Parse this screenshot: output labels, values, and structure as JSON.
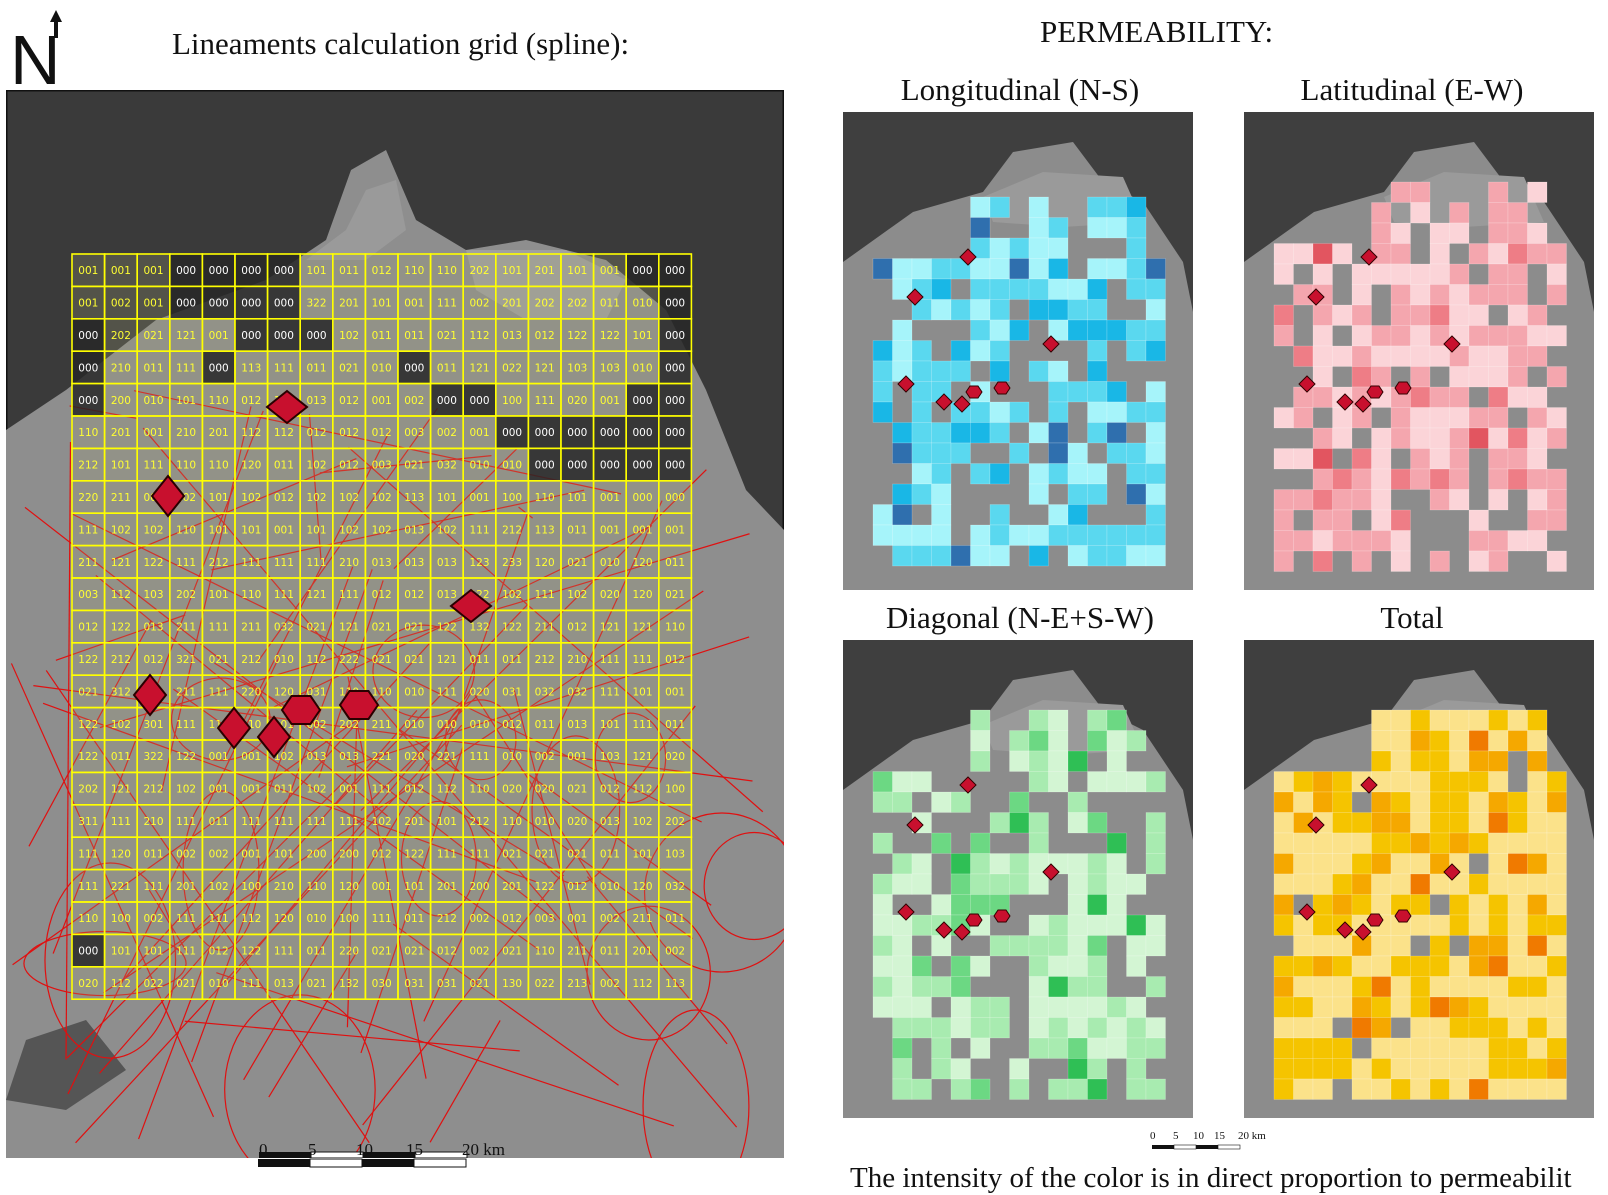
{
  "north_label": "N",
  "grid_title": "Lineaments calculation grid (spline):",
  "permeability_title": "PERMEABILITY:",
  "panels": {
    "longitudinal": {
      "title": "Longitudinal (N-S)",
      "color": "#5ad8ef"
    },
    "latitudinal": {
      "title": "Latitudinal (E-W)",
      "color": "#f4a6ae"
    },
    "diagonal": {
      "title": "Diagonal (N-E+S-W)",
      "color": "#a8ebb0"
    },
    "total": {
      "title": "Total",
      "color": "#f5c400"
    }
  },
  "scale_main": {
    "ticks": [
      "0",
      "5",
      "10",
      "15",
      "20 km"
    ]
  },
  "scale_small": {
    "ticks": [
      "0",
      "5",
      "10",
      "15",
      "20 km"
    ]
  },
  "caption": "The intensity of the color is in direct proportion to permeabilit",
  "colors": {
    "grid_line": "#ffff00",
    "grid_text": "#ffff33",
    "lineament": "#e01010",
    "marker": "#c8102e",
    "basemap": "#3c3c3c",
    "land": "#8a8a8a"
  },
  "grid": {
    "rows": [
      [
        "001",
        "001",
        "001",
        "000",
        "000",
        "000",
        "000",
        "101",
        "011",
        "012",
        "110",
        "110",
        "202",
        "101",
        "201",
        "101",
        "001",
        "000",
        "000"
      ],
      [
        "001",
        "002",
        "001",
        "000",
        "000",
        "000",
        "000",
        "322",
        "201",
        "101",
        "001",
        "111",
        "002",
        "201",
        "202",
        "202",
        "011",
        "010",
        "000"
      ],
      [
        "000",
        "202",
        "021",
        "121",
        "001",
        "000",
        "000",
        "000",
        "102",
        "011",
        "011",
        "021",
        "112",
        "013",
        "012",
        "122",
        "122",
        "101",
        "000"
      ],
      [
        "000",
        "210",
        "011",
        "111",
        "000",
        "113",
        "111",
        "011",
        "021",
        "010",
        "000",
        "011",
        "121",
        "022",
        "121",
        "103",
        "103",
        "010",
        "000"
      ],
      [
        "000",
        "200",
        "010",
        "101",
        "110",
        "012",
        "111",
        "013",
        "012",
        "001",
        "002",
        "000",
        "000",
        "100",
        "111",
        "020",
        "001",
        "000",
        "000"
      ],
      [
        "110",
        "201",
        "001",
        "210",
        "201",
        "112",
        "112",
        "012",
        "012",
        "012",
        "003",
        "002",
        "001",
        "000",
        "000",
        "000",
        "000",
        "000",
        "000"
      ],
      [
        "212",
        "101",
        "111",
        "110",
        "110",
        "120",
        "011",
        "102",
        "012",
        "003",
        "021",
        "032",
        "010",
        "010",
        "000",
        "000",
        "000",
        "000",
        "000"
      ],
      [
        "220",
        "211",
        "001",
        "102",
        "101",
        "102",
        "012",
        "102",
        "102",
        "102",
        "113",
        "101",
        "001",
        "100",
        "110",
        "101",
        "001",
        "000",
        "000"
      ],
      [
        "111",
        "102",
        "102",
        "110",
        "101",
        "101",
        "001",
        "101",
        "102",
        "102",
        "013",
        "102",
        "111",
        "212",
        "113",
        "011",
        "001",
        "001",
        "001"
      ],
      [
        "211",
        "121",
        "122",
        "111",
        "212",
        "111",
        "111",
        "111",
        "210",
        "013",
        "013",
        "013",
        "123",
        "233",
        "120",
        "021",
        "010",
        "120",
        "011"
      ],
      [
        "003",
        "112",
        "103",
        "202",
        "101",
        "110",
        "111",
        "121",
        "111",
        "012",
        "012",
        "013",
        "122",
        "102",
        "111",
        "102",
        "020",
        "120",
        "021"
      ],
      [
        "012",
        "122",
        "013",
        "211",
        "111",
        "211",
        "032",
        "021",
        "121",
        "021",
        "021",
        "122",
        "132",
        "122",
        "211",
        "012",
        "121",
        "121",
        "110"
      ],
      [
        "122",
        "212",
        "012",
        "321",
        "021",
        "212",
        "010",
        "112",
        "222",
        "021",
        "021",
        "121",
        "011",
        "011",
        "212",
        "210",
        "111",
        "111",
        "012"
      ],
      [
        "021",
        "312",
        "111",
        "211",
        "111",
        "220",
        "120",
        "031",
        "110",
        "110",
        "010",
        "111",
        "020",
        "031",
        "032",
        "032",
        "111",
        "101",
        "001"
      ],
      [
        "122",
        "102",
        "301",
        "111",
        "110",
        "110",
        "101",
        "002",
        "202",
        "211",
        "010",
        "010",
        "010",
        "012",
        "011",
        "013",
        "101",
        "111",
        "011"
      ],
      [
        "122",
        "011",
        "322",
        "122",
        "001",
        "001",
        "102",
        "013",
        "013",
        "221",
        "020",
        "221",
        "111",
        "010",
        "002",
        "001",
        "103",
        "121",
        "020"
      ],
      [
        "202",
        "121",
        "212",
        "102",
        "001",
        "001",
        "011",
        "102",
        "001",
        "111",
        "012",
        "112",
        "110",
        "020",
        "020",
        "021",
        "012",
        "112",
        "100"
      ],
      [
        "311",
        "111",
        "210",
        "111",
        "011",
        "111",
        "111",
        "111",
        "111",
        "102",
        "201",
        "101",
        "212",
        "110",
        "010",
        "020",
        "013",
        "102",
        "202"
      ],
      [
        "111",
        "120",
        "011",
        "002",
        "002",
        "001",
        "101",
        "200",
        "200",
        "012",
        "122",
        "111",
        "111",
        "021",
        "021",
        "021",
        "011",
        "101",
        "103"
      ],
      [
        "111",
        "221",
        "111",
        "201",
        "102",
        "100",
        "210",
        "110",
        "120",
        "001",
        "101",
        "201",
        "200",
        "201",
        "122",
        "012",
        "010",
        "120",
        "032"
      ],
      [
        "110",
        "100",
        "002",
        "111",
        "111",
        "112",
        "120",
        "010",
        "100",
        "111",
        "011",
        "212",
        "002",
        "012",
        "003",
        "001",
        "002",
        "211",
        "011"
      ],
      [
        "000",
        "101",
        "101",
        "111",
        "012",
        "122",
        "111",
        "011",
        "220",
        "021",
        "021",
        "012",
        "002",
        "021",
        "110",
        "211",
        "011",
        "201",
        "002"
      ],
      [
        "020",
        "112",
        "022",
        "021",
        "010",
        "111",
        "013",
        "021",
        "132",
        "030",
        "031",
        "031",
        "021",
        "130",
        "022",
        "213",
        "002",
        "112",
        "113"
      ]
    ]
  }
}
